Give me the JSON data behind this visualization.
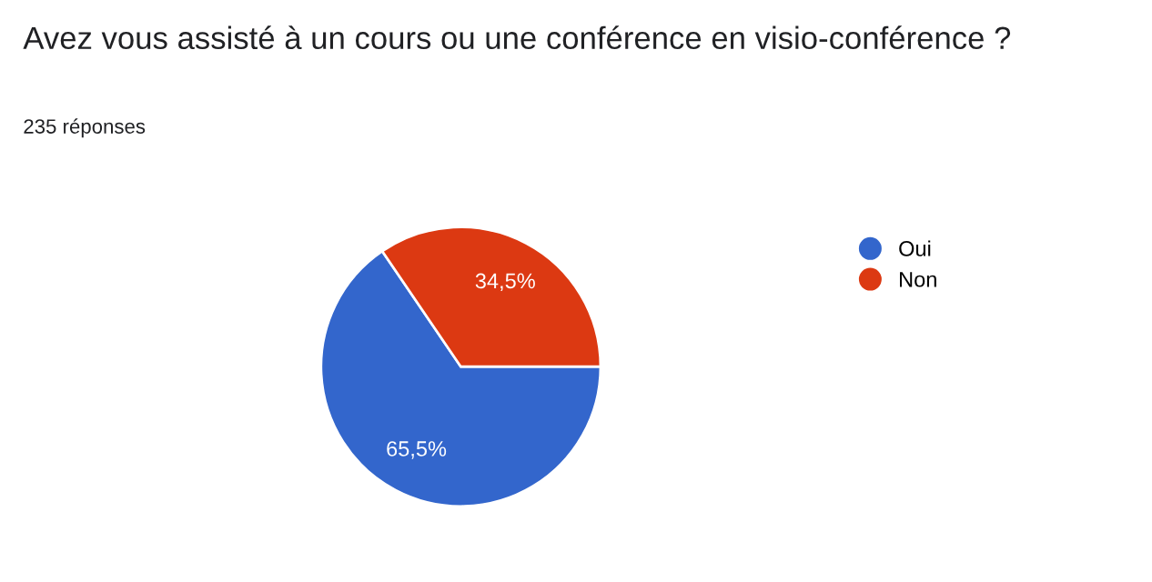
{
  "chart_data": {
    "type": "pie",
    "title": "Avez vous assisté à un cours ou une conférence en visio-conférence ?",
    "subtitle": "235 réponses",
    "categories": [
      "Oui",
      "Non"
    ],
    "values": [
      65.5,
      34.5
    ],
    "value_labels": [
      "65,5%",
      "34,5%"
    ],
    "colors": [
      "#3366cc",
      "#dc3912"
    ],
    "legend": "right"
  }
}
